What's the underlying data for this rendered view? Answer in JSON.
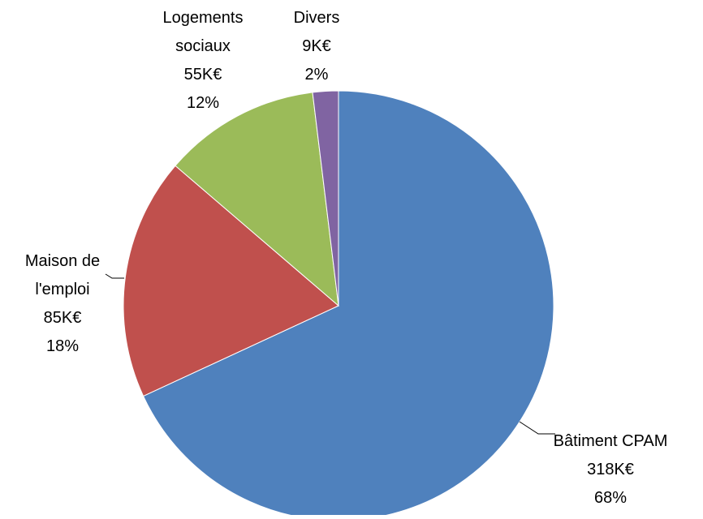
{
  "chart_data": {
    "type": "pie",
    "title": "",
    "slices": [
      {
        "name": "Bâtiment CPAM",
        "label_lines": [
          "Bâtiment CPAM"
        ],
        "value_label": "318K€",
        "percent_label": "68%",
        "value": 318,
        "percent": 68,
        "color": "#4F81BD"
      },
      {
        "name": "Maison de l'emploi",
        "label_lines": [
          "Maison de",
          "l'emploi"
        ],
        "value_label": "85K€",
        "percent_label": "18%",
        "value": 85,
        "percent": 18,
        "color": "#C0504D"
      },
      {
        "name": "Logements sociaux",
        "label_lines": [
          "Logements",
          "sociaux"
        ],
        "value_label": "55K€",
        "percent_label": "12%",
        "value": 55,
        "percent": 12,
        "color": "#9BBB59"
      },
      {
        "name": "Divers",
        "label_lines": [
          "Divers"
        ],
        "value_label": "9K€",
        "percent_label": "2%",
        "value": 9,
        "percent": 2,
        "color": "#8064A2"
      }
    ],
    "start_angle": "12 o'clock",
    "direction": "clockwise",
    "legend": "none",
    "data_labels": "outside, with leader lines"
  }
}
